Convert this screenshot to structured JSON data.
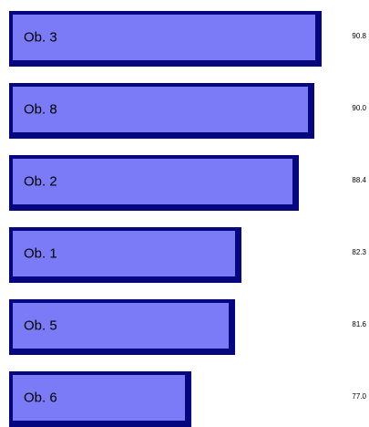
{
  "chart_data": {
    "type": "bar",
    "orientation": "horizontal",
    "categories": [
      "Ob. 3",
      "Ob. 8",
      "Ob. 2",
      "Ob. 1",
      "Ob. 5",
      "Ob. 6"
    ],
    "values": [
      90.8,
      90.0,
      88.4,
      82.3,
      81.6,
      77.0
    ],
    "value_labels": [
      "90.8",
      "90.0",
      "88.4",
      "82.3",
      "81.6",
      "77.0"
    ],
    "title": "",
    "xlabel": "",
    "ylabel": "",
    "grid": false,
    "legend": "none"
  },
  "colors": {
    "bar_fill": "#7b7bf7",
    "bar_border": "#06067f"
  }
}
